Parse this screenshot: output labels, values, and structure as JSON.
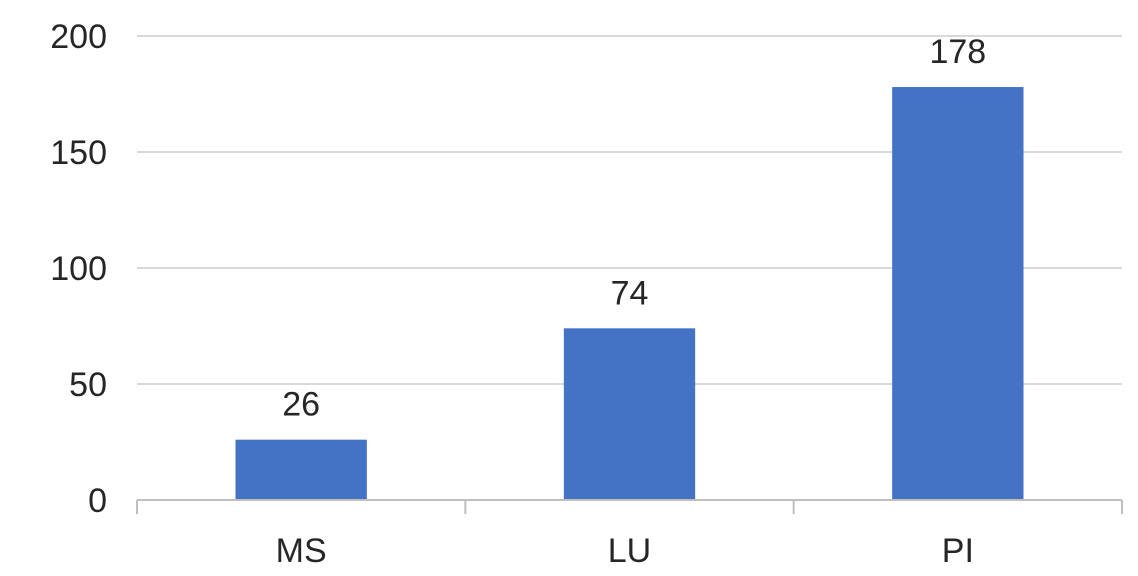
{
  "chart_data": {
    "type": "bar",
    "title": "",
    "xlabel": "",
    "ylabel": "",
    "categories": [
      "MS",
      "LU",
      "PI"
    ],
    "values": [
      26,
      74,
      178
    ],
    "data_labels": [
      "26",
      "74",
      "178"
    ],
    "ylim": [
      0,
      200
    ],
    "yticks": [
      0,
      50,
      100,
      150,
      200
    ],
    "ytick_labels": [
      "0",
      "50",
      "100",
      "150",
      "200"
    ],
    "grid": true,
    "legend": "none",
    "bar_color": "#4472C4"
  }
}
